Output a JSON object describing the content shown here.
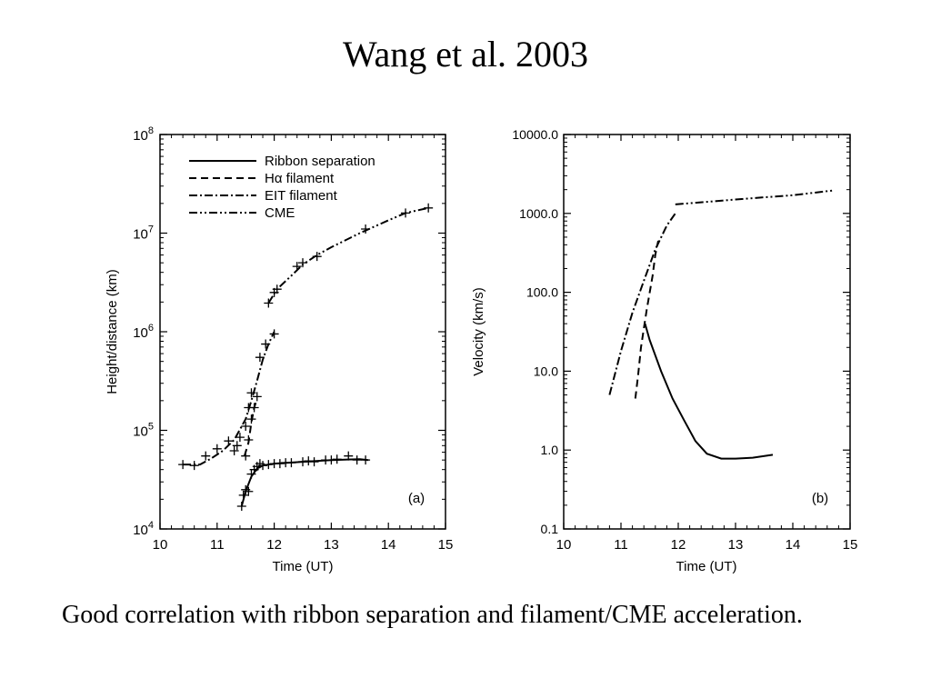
{
  "slide": {
    "title": "Wang et al. 2003",
    "caption": "Good correlation with ribbon separation and filament/CME acceleration."
  },
  "chart_data": [
    {
      "type": "line",
      "panel_label": "(a)",
      "xlabel": "Time (UT)",
      "ylabel": "Height/distance (km)",
      "xlim": [
        10,
        15
      ],
      "ylim": [
        10000,
        100000000
      ],
      "yscale": "log",
      "xticks": [
        10,
        11,
        12,
        13,
        14,
        15
      ],
      "yticks": [
        {
          "value": 10000,
          "base": "10",
          "exp": "4"
        },
        {
          "value": 100000,
          "base": "10",
          "exp": "5"
        },
        {
          "value": 1000000,
          "base": "10",
          "exp": "6"
        },
        {
          "value": 10000000,
          "base": "10",
          "exp": "7"
        },
        {
          "value": 100000000,
          "base": "10",
          "exp": "8"
        }
      ],
      "legend_position": "top-left",
      "legend": [
        {
          "label": "Ribbon separation",
          "style": "solid"
        },
        {
          "label": "Hα filament",
          "style": "dashed"
        },
        {
          "label": "EIT filament",
          "style": "dashdot"
        },
        {
          "label": "CME",
          "style": "dashdotdot"
        }
      ],
      "series": [
        {
          "name": "Ribbon separation",
          "style": "solid",
          "line": [
            [
              11.43,
              17000
            ],
            [
              11.5,
              24000
            ],
            [
              11.6,
              34000
            ],
            [
              11.7,
              41000
            ],
            [
              11.8,
              44000
            ],
            [
              12.0,
              46000
            ],
            [
              12.5,
              48000
            ],
            [
              13.0,
              50000
            ],
            [
              13.5,
              51000
            ],
            [
              13.65,
              50000
            ]
          ],
          "markers": [
            [
              11.43,
              17000
            ],
            [
              11.46,
              22000
            ],
            [
              11.5,
              25000
            ],
            [
              11.55,
              24000
            ],
            [
              11.6,
              36000
            ],
            [
              11.65,
              40000
            ],
            [
              11.7,
              43000
            ],
            [
              11.75,
              46000
            ],
            [
              11.8,
              44000
            ],
            [
              11.9,
              45000
            ],
            [
              12.0,
              46000
            ],
            [
              12.1,
              46000
            ],
            [
              12.2,
              47000
            ],
            [
              12.3,
              47000
            ],
            [
              12.5,
              48000
            ],
            [
              12.6,
              49000
            ],
            [
              12.7,
              48000
            ],
            [
              12.9,
              50000
            ],
            [
              13.0,
              50000
            ],
            [
              13.1,
              51000
            ],
            [
              13.3,
              55000
            ],
            [
              13.45,
              50000
            ],
            [
              13.6,
              50000
            ]
          ]
        },
        {
          "name": "Hα filament",
          "style": "dashed",
          "line": [
            [
              11.48,
              55000
            ],
            [
              11.55,
              75000
            ],
            [
              11.6,
              120000
            ],
            [
              11.65,
              170000
            ],
            [
              11.7,
              210000
            ]
          ],
          "markers": [
            [
              11.5,
              55000
            ],
            [
              11.55,
              80000
            ],
            [
              11.6,
              130000
            ],
            [
              11.65,
              170000
            ],
            [
              11.7,
              220000
            ]
          ]
        },
        {
          "name": "EIT filament",
          "style": "dashdot",
          "line": [
            [
              10.4,
              45000
            ],
            [
              10.7,
              45000
            ],
            [
              10.9,
              52000
            ],
            [
              11.1,
              62000
            ],
            [
              11.3,
              80000
            ],
            [
              11.5,
              130000
            ],
            [
              11.6,
              200000
            ],
            [
              11.7,
              320000
            ],
            [
              11.8,
              520000
            ],
            [
              11.9,
              750000
            ],
            [
              12.0,
              1000000
            ]
          ],
          "markers": [
            [
              10.4,
              45000
            ],
            [
              10.6,
              44000
            ],
            [
              10.8,
              55000
            ],
            [
              11.0,
              65000
            ],
            [
              11.2,
              78000
            ],
            [
              11.3,
              62000
            ],
            [
              11.35,
              70000
            ],
            [
              11.4,
              85000
            ],
            [
              11.5,
              110000
            ],
            [
              11.55,
              170000
            ],
            [
              11.6,
              240000
            ],
            [
              11.75,
              550000
            ],
            [
              11.85,
              750000
            ],
            [
              12.0,
              950000
            ]
          ]
        },
        {
          "name": "CME",
          "style": "dashdotdot",
          "line": [
            [
              11.9,
              1950000
            ],
            [
              12.05,
              2700000
            ],
            [
              12.3,
              3700000
            ],
            [
              12.5,
              4800000
            ],
            [
              12.75,
              6000000
            ],
            [
              13.0,
              7200000
            ],
            [
              13.5,
              10000000
            ],
            [
              14.0,
              13500000
            ],
            [
              14.3,
              16000000
            ],
            [
              14.7,
              18000000
            ]
          ],
          "markers": [
            [
              11.9,
              1950000
            ],
            [
              12.0,
              2500000
            ],
            [
              12.05,
              2700000
            ],
            [
              12.4,
              4600000
            ],
            [
              12.5,
              5000000
            ],
            [
              12.75,
              5800000
            ],
            [
              13.6,
              11000000
            ],
            [
              14.3,
              16000000
            ],
            [
              14.7,
              18000000
            ]
          ]
        }
      ]
    },
    {
      "type": "line",
      "panel_label": "(b)",
      "xlabel": "Time (UT)",
      "ylabel": "Velocity (km/s)",
      "xlim": [
        10,
        15
      ],
      "ylim": [
        0.1,
        10000
      ],
      "yscale": "log",
      "xticks": [
        10,
        11,
        12,
        13,
        14,
        15
      ],
      "yticks": [
        {
          "value": 0.1,
          "label": "0.1"
        },
        {
          "value": 1,
          "label": "1.0"
        },
        {
          "value": 10,
          "label": "10.0"
        },
        {
          "value": 100,
          "label": "100.0"
        },
        {
          "value": 1000,
          "label": "1000.0"
        },
        {
          "value": 10000,
          "label": "10000.0"
        }
      ],
      "series": [
        {
          "style": "solid",
          "line": [
            [
              11.42,
              40
            ],
            [
              11.5,
              25
            ],
            [
              11.7,
              10
            ],
            [
              11.9,
              4.5
            ],
            [
              12.1,
              2.4
            ],
            [
              12.3,
              1.3
            ],
            [
              12.5,
              0.9
            ],
            [
              12.75,
              0.78
            ],
            [
              13.0,
              0.78
            ],
            [
              13.3,
              0.8
            ],
            [
              13.65,
              0.87
            ]
          ]
        },
        {
          "style": "dashed",
          "line": [
            [
              11.25,
              4.5
            ],
            [
              11.3,
              9
            ],
            [
              11.35,
              20
            ],
            [
              11.45,
              60
            ],
            [
              11.55,
              160
            ],
            [
              11.6,
              300
            ],
            [
              11.65,
              450
            ]
          ]
        },
        {
          "style": "dashdot",
          "line": [
            [
              10.8,
              5
            ],
            [
              11.0,
              18
            ],
            [
              11.2,
              55
            ],
            [
              11.4,
              140
            ],
            [
              11.6,
              350
            ],
            [
              11.8,
              700
            ],
            [
              11.95,
              1000
            ]
          ]
        },
        {
          "style": "dashdotdot",
          "line": [
            [
              11.95,
              1300
            ],
            [
              12.5,
              1400
            ],
            [
              13.0,
              1500
            ],
            [
              13.5,
              1600
            ],
            [
              14.0,
              1700
            ],
            [
              14.3,
              1800
            ],
            [
              14.7,
              1950
            ]
          ]
        }
      ]
    }
  ]
}
